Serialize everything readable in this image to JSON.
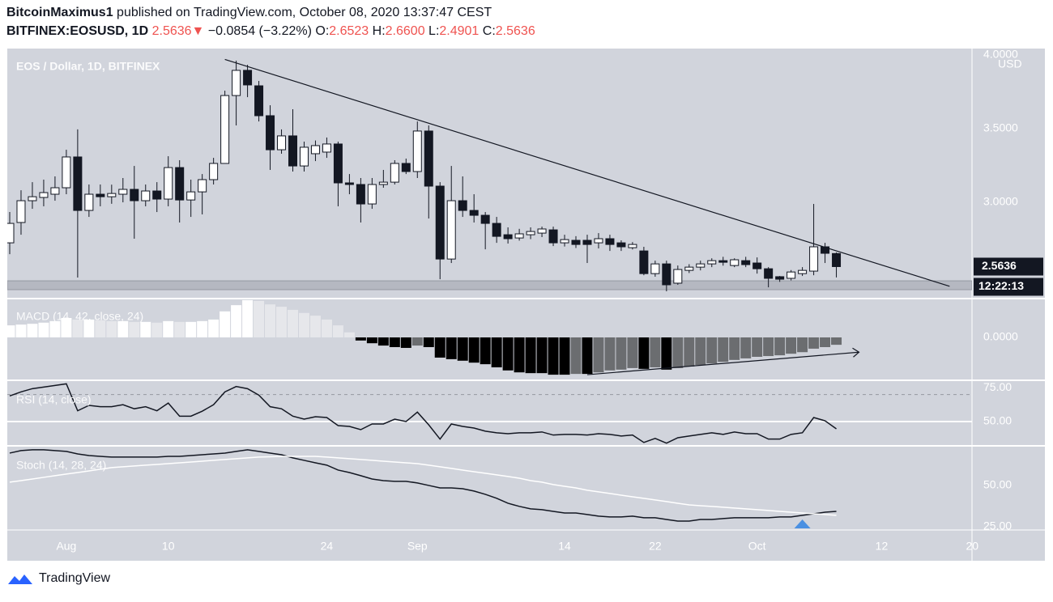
{
  "header": {
    "author": "BitcoinMaximus1",
    "published": "published on TradingView.com, October 08, 2020 13:37:47 CEST",
    "symbol": "BITFINEX:EOSUSD, 1D",
    "last": "2.5636",
    "change": "−0.0854 (−3.22%)",
    "ohlc": [
      [
        "O:",
        "2.6523"
      ],
      [
        "H:",
        "2.6600"
      ],
      [
        "L:",
        "2.4901"
      ],
      [
        "C:",
        "2.5636"
      ]
    ]
  },
  "chart_data": [
    {
      "type": "candlestick",
      "title": "EOS / Dollar, 1D, BITFINEX",
      "y_unit": "USD",
      "countdown": "12:22:13",
      "x": [
        "07-27",
        "07-28",
        "07-29",
        "07-30",
        "07-31",
        "08-01",
        "08-02",
        "08-03",
        "08-04",
        "08-05",
        "08-06",
        "08-07",
        "08-08",
        "08-09",
        "08-10",
        "08-11",
        "08-12",
        "08-13",
        "08-14",
        "08-15",
        "08-16",
        "08-17",
        "08-18",
        "08-19",
        "08-20",
        "08-21",
        "08-22",
        "08-23",
        "08-24",
        "08-25",
        "08-26",
        "08-27",
        "08-28",
        "08-29",
        "08-30",
        "08-31",
        "09-01",
        "09-02",
        "09-03",
        "09-04",
        "09-05",
        "09-06",
        "09-07",
        "09-08",
        "09-09",
        "09-10",
        "09-11",
        "09-12",
        "09-13",
        "09-14",
        "09-15",
        "09-16",
        "09-17",
        "09-18",
        "09-19",
        "09-20",
        "09-21",
        "09-22",
        "09-23",
        "09-24",
        "09-25",
        "09-26",
        "09-27",
        "09-28",
        "09-29",
        "09-30",
        "10-01",
        "10-02",
        "10-03",
        "10-04",
        "10-05",
        "10-06",
        "10-07",
        "10-08"
      ],
      "open": [
        2.725,
        2.863,
        3.011,
        3.033,
        3.055,
        3.099,
        3.308,
        2.945,
        3.055,
        3.038,
        3.055,
        3.088,
        3.011,
        3.077,
        3.022,
        3.236,
        3.016,
        3.071,
        3.154,
        3.264,
        3.725,
        3.896,
        3.791,
        3.588,
        3.357,
        3.451,
        3.247,
        3.33,
        3.341,
        3.396,
        3.132,
        3.121,
        2.989,
        3.121,
        3.137,
        3.264,
        3.209,
        3.484,
        3.11,
        2.615,
        3.011,
        2.945,
        2.912,
        2.857,
        2.78,
        2.758,
        2.78,
        2.791,
        2.813,
        2.725,
        2.742,
        2.742,
        2.725,
        2.753,
        2.725,
        2.692,
        2.67,
        2.516,
        2.582,
        2.451,
        2.538,
        2.56,
        2.582,
        2.604,
        2.571,
        2.604,
        2.588,
        2.549,
        2.495,
        2.484,
        2.516,
        2.533,
        2.698,
        2.6523
      ],
      "high": [
        2.934,
        3.082,
        3.137,
        3.154,
        3.176,
        3.357,
        3.495,
        3.121,
        3.121,
        3.12,
        3.165,
        3.247,
        3.121,
        3.137,
        3.313,
        3.286,
        3.154,
        3.192,
        3.302,
        3.758,
        3.962,
        3.934,
        3.824,
        3.659,
        3.495,
        3.632,
        3.412,
        3.42,
        3.44,
        3.412,
        3.192,
        3.165,
        3.165,
        3.22,
        3.286,
        3.297,
        3.549,
        3.522,
        3.137,
        3.247,
        3.176,
        3.055,
        2.934,
        2.901,
        2.83,
        2.82,
        2.83,
        2.835,
        2.835,
        2.78,
        2.77,
        2.78,
        2.791,
        2.78,
        2.742,
        2.73,
        2.698,
        2.604,
        2.604,
        2.571,
        2.58,
        2.604,
        2.62,
        2.63,
        2.62,
        2.63,
        2.626,
        2.56,
        2.5,
        2.54,
        2.56,
        2.989,
        2.725,
        2.66
      ],
      "low": [
        2.648,
        2.78,
        2.956,
        2.973,
        3.011,
        3.055,
        2.489,
        2.901,
        2.973,
        2.99,
        3.0,
        2.753,
        2.973,
        2.934,
        2.973,
        2.863,
        2.901,
        2.918,
        3.121,
        3.264,
        3.522,
        3.714,
        3.549,
        3.22,
        3.33,
        3.209,
        3.209,
        3.28,
        3.302,
        2.973,
        3.055,
        2.863,
        2.956,
        3.099,
        3.121,
        3.192,
        3.165,
        2.89,
        2.478,
        2.588,
        2.901,
        2.863,
        2.681,
        2.725,
        2.72,
        2.74,
        2.75,
        2.764,
        2.703,
        2.7,
        2.69,
        2.588,
        2.687,
        2.67,
        2.67,
        2.68,
        2.505,
        2.495,
        2.396,
        2.44,
        2.52,
        2.538,
        2.56,
        2.57,
        2.56,
        2.56,
        2.516,
        2.423,
        2.46,
        2.47,
        2.5,
        2.505,
        2.588,
        2.4901
      ],
      "close": [
        2.857,
        3.011,
        3.038,
        3.066,
        3.099,
        3.308,
        2.945,
        3.055,
        3.038,
        3.06,
        3.088,
        3.011,
        3.077,
        3.022,
        3.236,
        3.016,
        3.071,
        3.154,
        3.264,
        3.725,
        3.896,
        3.797,
        3.588,
        3.357,
        3.451,
        3.247,
        3.374,
        3.385,
        3.396,
        3.132,
        3.121,
        2.989,
        3.121,
        3.137,
        3.264,
        3.209,
        3.484,
        3.11,
        2.615,
        3.011,
        2.945,
        2.912,
        2.857,
        2.769,
        2.753,
        2.786,
        2.802,
        2.819,
        2.725,
        2.747,
        2.714,
        2.714,
        2.753,
        2.714,
        2.698,
        2.714,
        2.516,
        2.582,
        2.44,
        2.544,
        2.56,
        2.582,
        2.604,
        2.593,
        2.61,
        2.577,
        2.549,
        2.484,
        2.478,
        2.527,
        2.538,
        2.698,
        2.654,
        2.5636
      ],
      "up_color": "#ffffff",
      "down_color": "#131722",
      "ylim": [
        2.352,
        4.044
      ],
      "yticks": [
        {
          "value": 4,
          "label": "4.0000"
        },
        {
          "value": 3.5,
          "label": "3.5000"
        },
        {
          "value": 3,
          "label": "3.0000"
        }
      ],
      "xticks": [
        {
          "value": "08-01",
          "label": "Aug"
        },
        {
          "value": "08-10",
          "label": "10"
        },
        {
          "value": "08-24",
          "label": "24"
        },
        {
          "value": "09-01",
          "label": "Sep"
        },
        {
          "value": "09-14",
          "label": "14"
        },
        {
          "value": "09-22",
          "label": "22"
        },
        {
          "value": "10-01",
          "label": "Oct"
        },
        {
          "value": "10-12",
          "label": "12"
        },
        {
          "value": "10-20",
          "label": "20"
        }
      ],
      "trendline": {
        "x": [
          "08-15",
          "10-18"
        ],
        "y": [
          3.97,
          2.43
        ]
      },
      "support_zone": [
        2.407,
        2.467
      ]
    },
    {
      "type": "macd",
      "title": "MACD (14, 42, close, 24)",
      "values": [
        0.031,
        0.033,
        0.035,
        0.038,
        0.042,
        0.05,
        0.046,
        0.046,
        0.044,
        0.042,
        0.042,
        0.04,
        0.04,
        0.038,
        0.042,
        0.04,
        0.04,
        0.042,
        0.046,
        0.067,
        0.083,
        0.096,
        0.094,
        0.085,
        0.079,
        0.071,
        0.063,
        0.056,
        0.046,
        0.031,
        0.013,
        -0.008,
        -0.015,
        -0.021,
        -0.025,
        -0.027,
        -0.021,
        -0.025,
        -0.052,
        -0.056,
        -0.06,
        -0.065,
        -0.069,
        -0.077,
        -0.085,
        -0.09,
        -0.092,
        -0.092,
        -0.096,
        -0.096,
        -0.094,
        -0.094,
        -0.09,
        -0.085,
        -0.083,
        -0.079,
        -0.081,
        -0.077,
        -0.083,
        -0.079,
        -0.075,
        -0.071,
        -0.067,
        -0.063,
        -0.058,
        -0.054,
        -0.05,
        -0.048,
        -0.046,
        -0.042,
        -0.038,
        -0.029,
        -0.025,
        -0.019
      ],
      "ylim": [
        -0.1,
        0.1
      ],
      "yticks": [
        {
          "value": 0,
          "label": "0.0000"
        }
      ],
      "trendline": {
        "x": [
          "09-16",
          "10-10"
        ],
        "y": [
          -0.096,
          -0.038
        ]
      }
    },
    {
      "type": "line",
      "title": "RSI (14, close)",
      "series": [
        {
          "color": "#131722",
          "values": [
            69,
            72,
            74.4,
            75.6,
            76.8,
            78,
            58,
            62,
            61,
            61,
            62.5,
            59.5,
            61,
            58,
            63.7,
            54,
            54,
            57.7,
            62.5,
            72,
            76,
            74.4,
            69.6,
            61,
            59.5,
            54,
            51.8,
            53.6,
            53,
            47,
            46.4,
            44,
            48.2,
            48.2,
            51.8,
            50,
            57,
            47.6,
            37,
            48.2,
            46.4,
            45.2,
            42.9,
            41.7,
            41,
            41.7,
            41.7,
            42.3,
            40,
            40.5,
            40.5,
            40,
            41,
            40.5,
            39.3,
            40,
            34.5,
            37.5,
            34,
            38,
            39.3,
            40.5,
            41.7,
            40.5,
            42.3,
            41,
            41,
            37,
            37,
            40.5,
            41.7,
            53,
            50.6,
            44.6
          ]
        }
      ],
      "ylim": [
        32,
        80
      ],
      "yticks": [
        {
          "value": 75,
          "label": "75.00"
        },
        {
          "value": 50,
          "label": "50.00"
        }
      ],
      "levels": [
        70,
        50
      ]
    },
    {
      "type": "line",
      "title": "Stoch (14, 28, 24)",
      "series": [
        {
          "color": "#131722",
          "values": [
            69.6,
            71.1,
            71.6,
            71.6,
            71.1,
            70.6,
            69.1,
            68.1,
            67.6,
            67.2,
            67.2,
            67.2,
            67.2,
            67.2,
            67.6,
            67.6,
            68.1,
            68.6,
            69.1,
            69.6,
            70.6,
            71.6,
            70.6,
            69.6,
            68.6,
            66.7,
            65.2,
            63.7,
            62.3,
            59.3,
            57.8,
            55.9,
            53.9,
            52.9,
            52.5,
            52.5,
            51.5,
            50,
            48.5,
            48.5,
            48,
            46.6,
            44.6,
            42.2,
            39.2,
            37.3,
            35.8,
            35.3,
            34.3,
            33.3,
            33.3,
            32.4,
            31.4,
            30.9,
            30.9,
            31.4,
            30.4,
            30.4,
            29.4,
            28.4,
            28.4,
            29.4,
            29.4,
            29.9,
            30.4,
            30.4,
            30.4,
            30.4,
            30.9,
            30.9,
            31.9,
            32.8,
            33.8,
            34.3
          ]
        },
        {
          "color": "#ffffff",
          "values": [
            52,
            52.9,
            53.9,
            54.9,
            55.9,
            56.9,
            57.8,
            58.8,
            59.8,
            60.8,
            61.3,
            61.8,
            62.3,
            62.7,
            63.2,
            63.7,
            64.2,
            64.7,
            65.2,
            65.7,
            66.2,
            66.7,
            67.2,
            67.4,
            67.6,
            67.6,
            67.6,
            67.6,
            67.2,
            66.7,
            66.2,
            65.7,
            65.2,
            64.7,
            64.2,
            63.7,
            63.2,
            62.3,
            61.3,
            60.3,
            59.3,
            58.3,
            57.4,
            56.4,
            55.4,
            54.4,
            52.9,
            52,
            50.5,
            49.5,
            48.5,
            47.1,
            46.1,
            45.1,
            44.1,
            43.1,
            42.2,
            41.2,
            40.2,
            39.2,
            38.2,
            37.7,
            37.3,
            36.8,
            36.3,
            35.8,
            35.3,
            34.8,
            34.3,
            33.8,
            33.3,
            32.8,
            32.4,
            31.9
          ]
        }
      ],
      "ylim": [
        23,
        73.5
      ],
      "yticks": [
        {
          "value": 50,
          "label": "50.00"
        },
        {
          "value": 25,
          "label": "25.00"
        }
      ],
      "signal_x": "10-05"
    }
  ],
  "footer": {
    "brand": "TradingView"
  }
}
